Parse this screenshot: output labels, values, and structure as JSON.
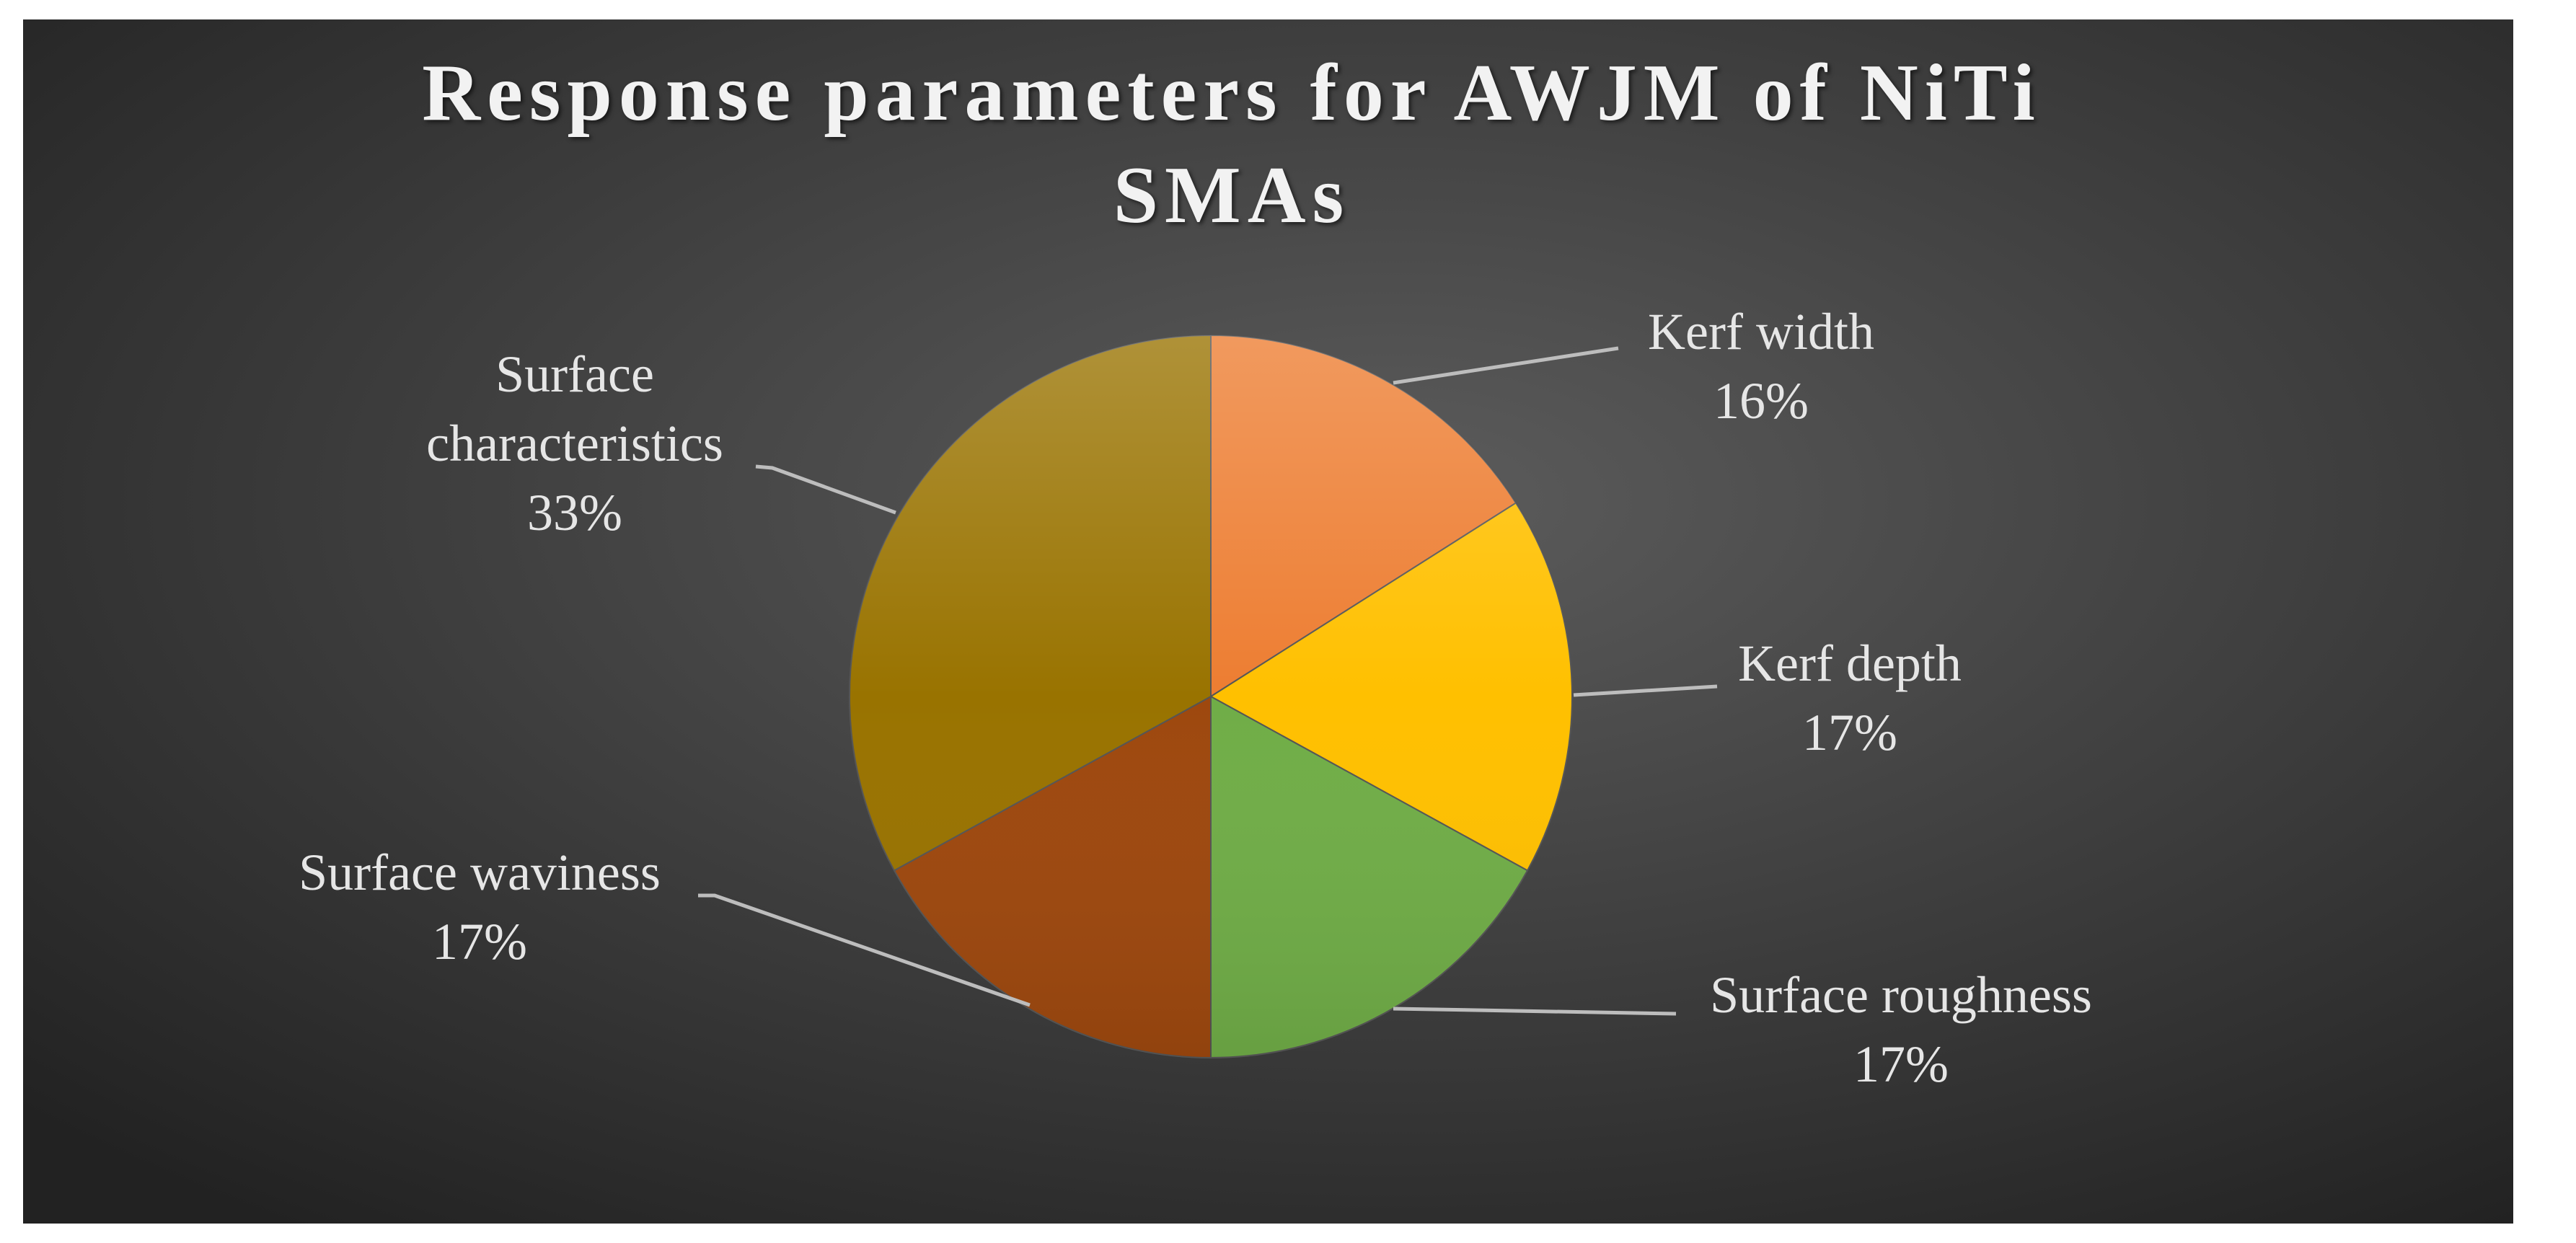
{
  "chart_data": {
    "type": "pie",
    "title": "Response parameters for AWJM of NiTi SMAs",
    "categories": [
      "Kerf width",
      "Kerf depth",
      "Surface roughness",
      "Surface waviness",
      "Surface characteristics"
    ],
    "values": [
      16,
      17,
      17,
      17,
      33
    ],
    "value_labels": [
      "16%",
      "17%",
      "17%",
      "17%",
      "33%"
    ],
    "colors": [
      "#ed7d31",
      "#ffc000",
      "#70ad47",
      "#9e480e",
      "#997300"
    ]
  }
}
